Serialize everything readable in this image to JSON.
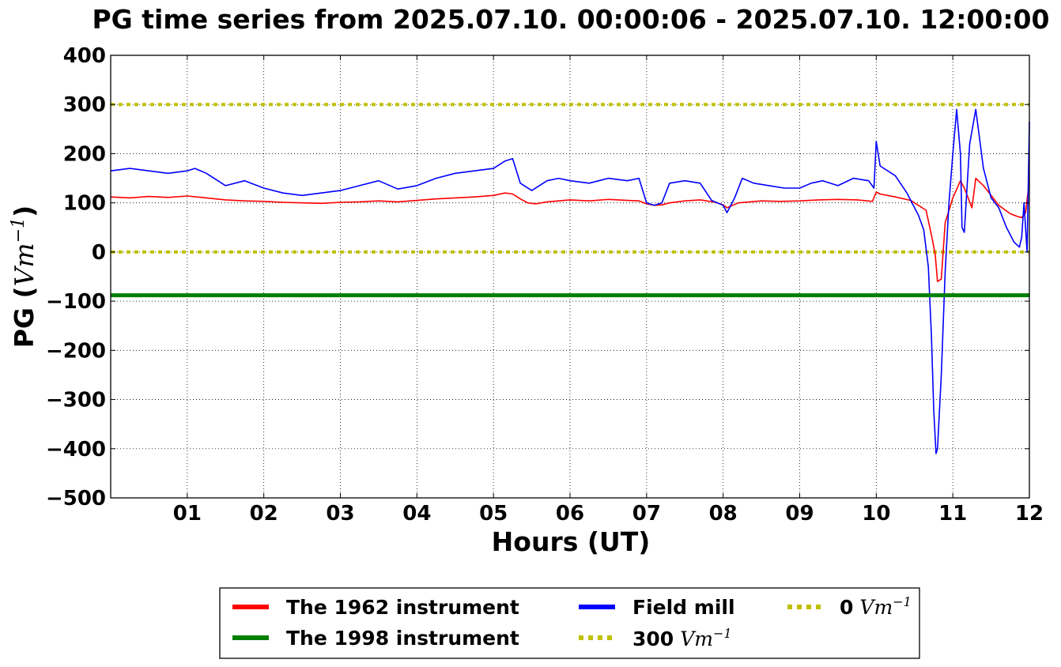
{
  "chart_data": {
    "type": "line",
    "title": "PG time series from 2025.07.10. 00:00:06 - 2025.07.10. 12:00:00",
    "xlabel": "Hours (UT)",
    "ylabel_prefix": "PG (",
    "ylabel_unit": "Vm",
    "ylabel_exp": "−1",
    "ylabel_suffix": ")",
    "xlim": [
      0,
      12
    ],
    "ylim": [
      -500,
      400
    ],
    "x_ticks": [
      {
        "value": 1,
        "label": "01"
      },
      {
        "value": 2,
        "label": "02"
      },
      {
        "value": 3,
        "label": "03"
      },
      {
        "value": 4,
        "label": "04"
      },
      {
        "value": 5,
        "label": "05"
      },
      {
        "value": 6,
        "label": "06"
      },
      {
        "value": 7,
        "label": "07"
      },
      {
        "value": 8,
        "label": "08"
      },
      {
        "value": 9,
        "label": "09"
      },
      {
        "value": 10,
        "label": "10"
      },
      {
        "value": 11,
        "label": "11"
      },
      {
        "value": 12,
        "label": "12"
      }
    ],
    "y_ticks": [
      {
        "value": 400,
        "label": "400"
      },
      {
        "value": 300,
        "label": "300"
      },
      {
        "value": 200,
        "label": "200"
      },
      {
        "value": 100,
        "label": "100"
      },
      {
        "value": 0,
        "label": "0"
      },
      {
        "value": -100,
        "label": "−100"
      },
      {
        "value": -200,
        "label": "−200"
      },
      {
        "value": -300,
        "label": "−300"
      },
      {
        "value": -400,
        "label": "−400"
      },
      {
        "value": -500,
        "label": "−500"
      }
    ],
    "grid": true,
    "legend_position": "bottom-center",
    "series": [
      {
        "name": "The 1962 instrument",
        "color": "#ff0000",
        "x": [
          0,
          0.25,
          0.5,
          0.75,
          1.0,
          1.25,
          1.5,
          1.75,
          2.0,
          2.25,
          2.5,
          2.75,
          3.0,
          3.25,
          3.5,
          3.75,
          4.0,
          4.25,
          4.5,
          4.75,
          5.0,
          5.15,
          5.25,
          5.35,
          5.45,
          5.55,
          5.7,
          5.85,
          6.0,
          6.25,
          6.5,
          6.75,
          6.9,
          7.0,
          7.1,
          7.2,
          7.3,
          7.5,
          7.7,
          7.9,
          8.0,
          8.05,
          8.2,
          8.5,
          8.75,
          9.0,
          9.25,
          9.5,
          9.75,
          9.95,
          10.0,
          10.05,
          10.25,
          10.45,
          10.55,
          10.65,
          10.72,
          10.77,
          10.8,
          10.85,
          10.9,
          11.0,
          11.1,
          11.15,
          11.25,
          11.3,
          11.4,
          11.5,
          11.6,
          11.75,
          11.85,
          11.9,
          11.95,
          12.0
        ],
        "y": [
          112,
          110,
          113,
          111,
          114,
          110,
          106,
          104,
          103,
          101,
          100,
          99,
          101,
          102,
          104,
          102,
          105,
          108,
          110,
          112,
          115,
          120,
          118,
          108,
          100,
          98,
          102,
          104,
          106,
          104,
          107,
          105,
          104,
          98,
          95,
          96,
          100,
          104,
          106,
          101,
          96,
          90,
          100,
          104,
          103,
          104,
          106,
          107,
          106,
          103,
          122,
          118,
          112,
          105,
          95,
          85,
          35,
          -5,
          -60,
          -55,
          60,
          110,
          145,
          130,
          90,
          150,
          135,
          115,
          95,
          78,
          72,
          70,
          80,
          145
        ]
      },
      {
        "name": "The 1998 instrument",
        "color": "#008000",
        "x": [
          0,
          12
        ],
        "y": [
          -88,
          -88
        ]
      },
      {
        "name": "Field mill",
        "color": "#0000ff",
        "x": [
          0,
          0.25,
          0.5,
          0.75,
          1.0,
          1.1,
          1.25,
          1.5,
          1.75,
          2.0,
          2.25,
          2.5,
          2.75,
          3.0,
          3.25,
          3.5,
          3.75,
          4.0,
          4.25,
          4.5,
          4.75,
          5.0,
          5.15,
          5.25,
          5.35,
          5.5,
          5.7,
          5.85,
          6.0,
          6.25,
          6.5,
          6.75,
          6.9,
          7.0,
          7.1,
          7.2,
          7.3,
          7.5,
          7.7,
          7.85,
          8.0,
          8.05,
          8.15,
          8.25,
          8.4,
          8.6,
          8.8,
          9.0,
          9.15,
          9.3,
          9.5,
          9.7,
          9.9,
          9.97,
          10.0,
          10.05,
          10.25,
          10.4,
          10.55,
          10.62,
          10.68,
          10.72,
          10.75,
          10.78,
          10.8,
          10.85,
          10.9,
          10.95,
          11.0,
          11.05,
          11.1,
          11.12,
          11.15,
          11.22,
          11.3,
          11.4,
          11.5,
          11.6,
          11.7,
          11.8,
          11.87,
          11.9,
          11.93,
          11.97,
          12.0
        ],
        "y": [
          165,
          170,
          165,
          160,
          165,
          170,
          160,
          135,
          145,
          130,
          120,
          115,
          120,
          125,
          135,
          145,
          128,
          135,
          150,
          160,
          165,
          170,
          185,
          190,
          140,
          125,
          145,
          150,
          145,
          140,
          150,
          145,
          150,
          100,
          95,
          100,
          140,
          145,
          140,
          105,
          95,
          80,
          110,
          150,
          140,
          135,
          130,
          130,
          140,
          145,
          135,
          150,
          145,
          130,
          225,
          175,
          155,
          120,
          75,
          45,
          -30,
          -170,
          -320,
          -410,
          -400,
          -250,
          -40,
          100,
          200,
          290,
          200,
          50,
          40,
          220,
          290,
          170,
          110,
          90,
          50,
          20,
          10,
          30,
          100,
          0,
          265
        ]
      },
      {
        "name": "300 Vm−1",
        "label_number": "300",
        "label_unit": "Vm",
        "label_exp": "−1",
        "color": "#bfbf00",
        "dashed": true,
        "x": [
          0,
          12
        ],
        "y": [
          300,
          300
        ]
      },
      {
        "name": "0 Vm−1",
        "label_number": "0",
        "label_unit": "Vm",
        "label_exp": "−1",
        "color": "#bfbf00",
        "dashed": true,
        "x": [
          0,
          12
        ],
        "y": [
          0,
          0
        ]
      }
    ]
  }
}
